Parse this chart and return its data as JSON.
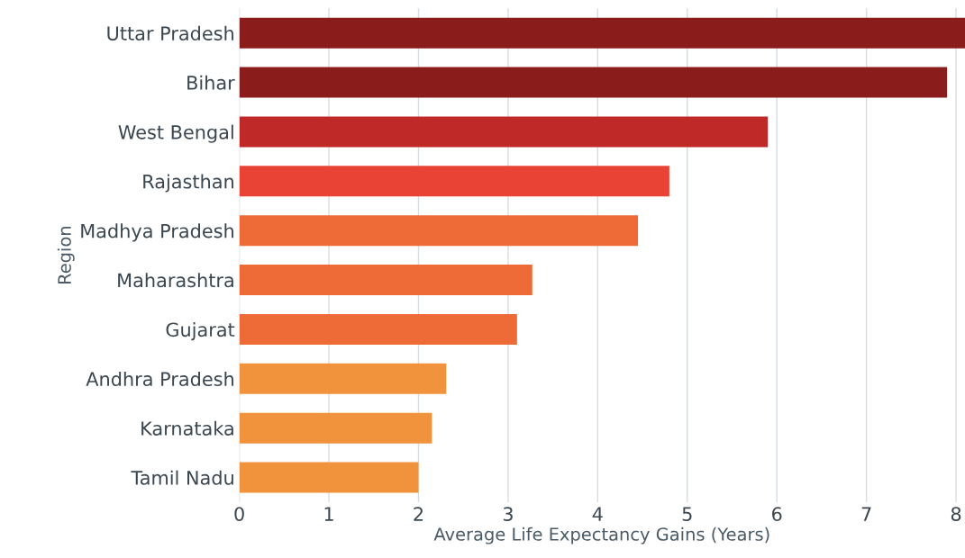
{
  "chart_data": {
    "type": "bar",
    "orientation": "horizontal",
    "ylabel": "Region",
    "xlabel": "Average Life Expectancy Gains (Years)",
    "categories": [
      "Uttar Pradesh",
      "Bihar",
      "West Bengal",
      "Rajasthan",
      "Madhya Pradesh",
      "Maharashtra",
      "Gujarat",
      "Andhra Pradesh",
      "Karnataka",
      "Tamil Nadu"
    ],
    "values": [
      8.1,
      7.9,
      5.9,
      4.8,
      4.45,
      3.27,
      3.1,
      2.31,
      2.15,
      2.0
    ],
    "colors": [
      "#8b1c1c",
      "#8b1c1c",
      "#bf2a28",
      "#e84334",
      "#ee6a37",
      "#ee6a37",
      "#ee6a37",
      "#f1933c",
      "#f1933c",
      "#f1933c"
    ],
    "xlim": [
      0,
      8.1
    ],
    "xticks": [
      0,
      1,
      2,
      3,
      4,
      5,
      6,
      7,
      8
    ],
    "grid": "x"
  }
}
